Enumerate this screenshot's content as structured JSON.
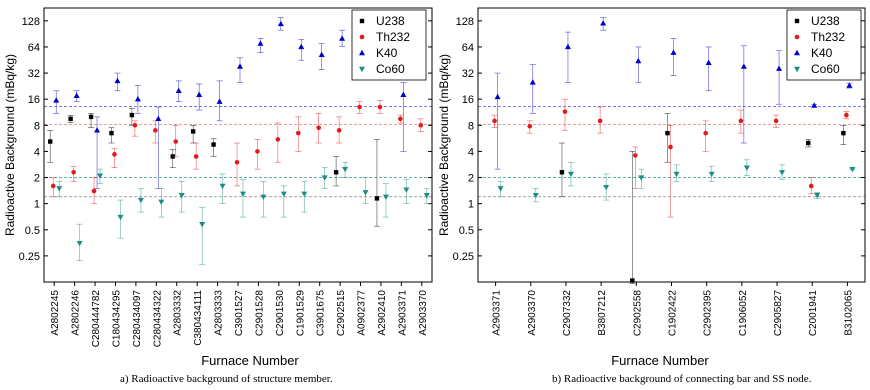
{
  "chart_data": [
    {
      "type": "scatter",
      "panel": "a",
      "caption": "a) Radioactive background of structure member.",
      "xlabel": "Furnace Number",
      "ylabel": "Radioactive Background (mBq/kg)",
      "yscale": "log2",
      "ylim": [
        0.125,
        180
      ],
      "yticks": [
        "0.25",
        "0.5",
        "1",
        "2",
        "4",
        "8",
        "16",
        "32",
        "64",
        "128"
      ],
      "legend_position": "top-right",
      "categories": [
        "A2802245",
        "A2802246",
        "C280444782",
        "C180434295",
        "C280434097",
        "C280434322",
        "A2803332",
        "C380434111",
        "A2803333",
        "C3901527",
        "C2901528",
        "C2901530",
        "C1901529",
        "C3901675",
        "C2902515",
        "A0902377",
        "A2902410",
        "A2903371",
        "A2903370"
      ],
      "reference_lines": [
        {
          "series": "K40",
          "value": 13.2,
          "color": "#6a6ae8"
        },
        {
          "series": "Th232",
          "value": 8.2,
          "color": "#e87a7a"
        },
        {
          "series": "Co60",
          "value": 2.0,
          "color": "#4aa8a0"
        },
        {
          "series": "U238",
          "value": 1.2,
          "color": "#888888"
        }
      ],
      "series": [
        {
          "name": "U238",
          "color": "#000000",
          "marker": "square",
          "points": [
            {
              "x": 0,
              "y": 5.2,
              "lo": 3.0,
              "hi": 7.0
            },
            {
              "x": 1,
              "y": 9.5,
              "lo": 8.6,
              "hi": 10.4
            },
            {
              "x": 2,
              "y": 10.0,
              "lo": 7.5,
              "hi": 11.0
            },
            {
              "x": 3,
              "y": 6.5,
              "lo": 5.0,
              "hi": 7.5
            },
            {
              "x": 4,
              "y": 10.5,
              "lo": 8.0,
              "hi": 12.5
            },
            {
              "x": 6,
              "y": 3.5,
              "lo": 2.6,
              "hi": 4.2
            },
            {
              "x": 7,
              "y": 6.8,
              "lo": 5.0,
              "hi": 8.0
            },
            {
              "x": 8,
              "y": 4.8,
              "lo": 3.5,
              "hi": 5.6
            },
            {
              "x": 14,
              "y": 2.3,
              "lo": 1.6,
              "hi": 3.5
            },
            {
              "x": 16,
              "y": 1.15,
              "lo": 0.55,
              "hi": 5.5
            }
          ]
        },
        {
          "name": "Th232",
          "color": "#e31a1c",
          "marker": "circle",
          "points": [
            {
              "x": 0,
              "y": 1.6,
              "lo": 1.2,
              "hi": 2.0
            },
            {
              "x": 1,
              "y": 2.3,
              "lo": 1.8,
              "hi": 2.7
            },
            {
              "x": 2,
              "y": 1.4,
              "lo": 1.0,
              "hi": 2.0
            },
            {
              "x": 3,
              "y": 3.7,
              "lo": 2.6,
              "hi": 4.3
            },
            {
              "x": 4,
              "y": 8.0,
              "lo": 6.0,
              "hi": 9.0
            },
            {
              "x": 5,
              "y": 7.0,
              "lo": 5.0,
              "hi": 9.0
            },
            {
              "x": 6,
              "y": 5.2,
              "lo": 3.5,
              "hi": 8.0
            },
            {
              "x": 7,
              "y": 3.5,
              "lo": 2.5,
              "hi": 5.0
            },
            {
              "x": 9,
              "y": 3.0,
              "lo": 1.6,
              "hi": 5.0
            },
            {
              "x": 10,
              "y": 4.0,
              "lo": 2.5,
              "hi": 5.5
            },
            {
              "x": 11,
              "y": 5.5,
              "lo": 3.0,
              "hi": 8.5
            },
            {
              "x": 12,
              "y": 6.5,
              "lo": 4.0,
              "hi": 10.0
            },
            {
              "x": 13,
              "y": 7.5,
              "lo": 5.0,
              "hi": 11.0
            },
            {
              "x": 14,
              "y": 7.0,
              "lo": 5.0,
              "hi": 10.0
            },
            {
              "x": 15,
              "y": 13.0,
              "lo": 11.0,
              "hi": 15.0
            },
            {
              "x": 16,
              "y": 13.0,
              "lo": 11.0,
              "hi": 15.5
            },
            {
              "x": 17,
              "y": 9.5,
              "lo": 8.5,
              "hi": 10.5
            },
            {
              "x": 18,
              "y": 8.0,
              "lo": 6.8,
              "hi": 9.5
            }
          ]
        },
        {
          "name": "K40",
          "color": "#0000cc",
          "marker": "triangle-up",
          "points": [
            {
              "x": 0,
              "y": 15.5,
              "lo": 11.0,
              "hi": 20.0
            },
            {
              "x": 1,
              "y": 17.5,
              "lo": 15.0,
              "hi": 20.0
            },
            {
              "x": 2,
              "y": 7.0,
              "lo": 1.5,
              "hi": 10.0
            },
            {
              "x": 3,
              "y": 26.0,
              "lo": 20.0,
              "hi": 32.0
            },
            {
              "x": 4,
              "y": 16.0,
              "lo": 11.0,
              "hi": 23.0
            },
            {
              "x": 5,
              "y": 9.5,
              "lo": 1.5,
              "hi": 13.0
            },
            {
              "x": 6,
              "y": 20.0,
              "lo": 15.0,
              "hi": 26.0
            },
            {
              "x": 7,
              "y": 18.0,
              "lo": 12.0,
              "hi": 24.0
            },
            {
              "x": 8,
              "y": 15.0,
              "lo": 9.0,
              "hi": 26.0
            },
            {
              "x": 9,
              "y": 38.0,
              "lo": 25.0,
              "hi": 48.0
            },
            {
              "x": 10,
              "y": 70.0,
              "lo": 55.0,
              "hi": 80.0
            },
            {
              "x": 11,
              "y": 118.0,
              "lo": 100.0,
              "hi": 140.0
            },
            {
              "x": 12,
              "y": 64.0,
              "lo": 45.0,
              "hi": 78.0
            },
            {
              "x": 13,
              "y": 52.0,
              "lo": 35.0,
              "hi": 70.0
            },
            {
              "x": 14,
              "y": 80.0,
              "lo": 65.0,
              "hi": 100.0
            },
            {
              "x": 17,
              "y": 18.0,
              "lo": 4.0,
              "hi": 25.0
            }
          ]
        },
        {
          "name": "Co60",
          "color": "#1a8f86",
          "marker": "triangle-down",
          "points": [
            {
              "x": 0,
              "y": 1.5,
              "lo": 1.2,
              "hi": 1.8
            },
            {
              "x": 1,
              "y": 0.35,
              "lo": 0.22,
              "hi": 0.58
            },
            {
              "x": 2,
              "y": 2.1,
              "lo": 1.7,
              "hi": 2.5
            },
            {
              "x": 3,
              "y": 0.7,
              "lo": 0.4,
              "hi": 1.1
            },
            {
              "x": 4,
              "y": 1.1,
              "lo": 0.8,
              "hi": 1.5
            },
            {
              "x": 5,
              "y": 1.05,
              "lo": 0.7,
              "hi": 1.5
            },
            {
              "x": 6,
              "y": 1.25,
              "lo": 0.8,
              "hi": 1.8
            },
            {
              "x": 7,
              "y": 0.58,
              "lo": 0.2,
              "hi": 0.9
            },
            {
              "x": 8,
              "y": 1.6,
              "lo": 1.0,
              "hi": 2.2
            },
            {
              "x": 9,
              "y": 1.3,
              "lo": 0.7,
              "hi": 1.9
            },
            {
              "x": 10,
              "y": 1.2,
              "lo": 0.7,
              "hi": 1.8
            },
            {
              "x": 11,
              "y": 1.3,
              "lo": 0.7,
              "hi": 1.6
            },
            {
              "x": 12,
              "y": 1.3,
              "lo": 0.8,
              "hi": 1.8
            },
            {
              "x": 13,
              "y": 2.0,
              "lo": 1.5,
              "hi": 2.6
            },
            {
              "x": 14,
              "y": 2.5,
              "lo": 2.0,
              "hi": 3.0
            },
            {
              "x": 15,
              "y": 1.35,
              "lo": 1.0,
              "hi": 2.0
            },
            {
              "x": 16,
              "y": 1.2,
              "lo": 0.7,
              "hi": 1.7
            },
            {
              "x": 17,
              "y": 1.45,
              "lo": 1.0,
              "hi": 1.9
            },
            {
              "x": 18,
              "y": 1.25,
              "lo": 1.0,
              "hi": 1.5
            }
          ]
        }
      ]
    },
    {
      "type": "scatter",
      "panel": "b",
      "caption": "b) Radioactive background of connecting bar and SS node.",
      "xlabel": "Furnace Number",
      "ylabel": "Radioactive Background (mBq/kg)",
      "yscale": "log2",
      "ylim": [
        0.125,
        180
      ],
      "yticks": [
        "0.25",
        "0.5",
        "1",
        "2",
        "4",
        "8",
        "16",
        "32",
        "64",
        "128"
      ],
      "legend_position": "top-right",
      "categories": [
        "A2903371",
        "A2903370",
        "C2907332",
        "B3807212",
        "C2902558",
        "C1902422",
        "C2902395",
        "C1906052",
        "C2905827",
        "C2001941",
        "B3102065"
      ],
      "reference_lines": [
        {
          "series": "K40",
          "value": 13.2,
          "color": "#6a6ae8"
        },
        {
          "series": "Th232",
          "value": 8.2,
          "color": "#e87a7a"
        },
        {
          "series": "Co60",
          "value": 2.0,
          "color": "#4aa8a0"
        },
        {
          "series": "U238",
          "value": 1.2,
          "color": "#888888"
        }
      ],
      "series": [
        {
          "name": "U238",
          "color": "#000000",
          "marker": "square",
          "points": [
            {
              "x": 2,
              "y": 2.3,
              "lo": 1.2,
              "hi": 5.0
            },
            {
              "x": 4,
              "y": 0.13,
              "lo": 0.12,
              "hi": 4.0
            },
            {
              "x": 5,
              "y": 6.5,
              "lo": 3.0,
              "hi": 11.0
            },
            {
              "x": 9,
              "y": 5.0,
              "lo": 4.5,
              "hi": 5.5
            },
            {
              "x": 10,
              "y": 6.5,
              "lo": 4.8,
              "hi": 8.0
            }
          ]
        },
        {
          "name": "Th232",
          "color": "#e31a1c",
          "marker": "circle",
          "points": [
            {
              "x": 0,
              "y": 9.0,
              "lo": 7.5,
              "hi": 10.5
            },
            {
              "x": 1,
              "y": 7.8,
              "lo": 6.5,
              "hi": 9.0
            },
            {
              "x": 2,
              "y": 11.5,
              "lo": 7.0,
              "hi": 16.0
            },
            {
              "x": 3,
              "y": 9.0,
              "lo": 6.5,
              "hi": 13.0
            },
            {
              "x": 4,
              "y": 3.6,
              "lo": 1.5,
              "hi": 4.5
            },
            {
              "x": 5,
              "y": 4.5,
              "lo": 0.7,
              "hi": 8.0
            },
            {
              "x": 6,
              "y": 6.5,
              "lo": 4.0,
              "hi": 9.0
            },
            {
              "x": 7,
              "y": 9.0,
              "lo": 6.5,
              "hi": 12.0
            },
            {
              "x": 8,
              "y": 9.0,
              "lo": 7.5,
              "hi": 10.5
            },
            {
              "x": 9,
              "y": 1.6,
              "lo": 1.3,
              "hi": 2.0
            },
            {
              "x": 10,
              "y": 10.5,
              "lo": 9.5,
              "hi": 11.5
            }
          ]
        },
        {
          "name": "K40",
          "color": "#0000cc",
          "marker": "triangle-up",
          "points": [
            {
              "x": 0,
              "y": 17.0,
              "lo": 2.5,
              "hi": 32.0
            },
            {
              "x": 1,
              "y": 25.0,
              "lo": 11.0,
              "hi": 40.0
            },
            {
              "x": 2,
              "y": 64.0,
              "lo": 25.0,
              "hi": 95.0
            },
            {
              "x": 3,
              "y": 120.0,
              "lo": 100.0,
              "hi": 140.0
            },
            {
              "x": 4,
              "y": 44.0,
              "lo": 25.0,
              "hi": 64.0
            },
            {
              "x": 5,
              "y": 55.0,
              "lo": 30.0,
              "hi": 80.0
            },
            {
              "x": 6,
              "y": 42.0,
              "lo": 20.0,
              "hi": 64.0
            },
            {
              "x": 7,
              "y": 38.0,
              "lo": 5.0,
              "hi": 66.0
            },
            {
              "x": 8,
              "y": 36.0,
              "lo": 14.0,
              "hi": 58.0
            },
            {
              "x": 9,
              "y": 13.5,
              "lo": 13.0,
              "hi": 14.0
            },
            {
              "x": 10,
              "y": 23.0,
              "lo": 21.5,
              "hi": 24.5
            }
          ]
        },
        {
          "name": "Co60",
          "color": "#1a8f86",
          "marker": "triangle-down",
          "points": [
            {
              "x": 0,
              "y": 1.5,
              "lo": 1.2,
              "hi": 1.8
            },
            {
              "x": 1,
              "y": 1.25,
              "lo": 1.05,
              "hi": 1.5
            },
            {
              "x": 2,
              "y": 2.2,
              "lo": 1.6,
              "hi": 3.0
            },
            {
              "x": 3,
              "y": 1.55,
              "lo": 1.1,
              "hi": 2.2
            },
            {
              "x": 4,
              "y": 2.0,
              "lo": 1.5,
              "hi": 2.5
            },
            {
              "x": 5,
              "y": 2.2,
              "lo": 1.8,
              "hi": 2.8
            },
            {
              "x": 6,
              "y": 2.2,
              "lo": 1.8,
              "hi": 2.7
            },
            {
              "x": 7,
              "y": 2.6,
              "lo": 2.1,
              "hi": 3.2
            },
            {
              "x": 8,
              "y": 2.3,
              "lo": 1.9,
              "hi": 2.8
            },
            {
              "x": 9,
              "y": 1.25,
              "lo": 1.15,
              "hi": 1.35
            },
            {
              "x": 10,
              "y": 2.5,
              "lo": 2.5,
              "hi": 2.5
            }
          ]
        }
      ]
    }
  ]
}
